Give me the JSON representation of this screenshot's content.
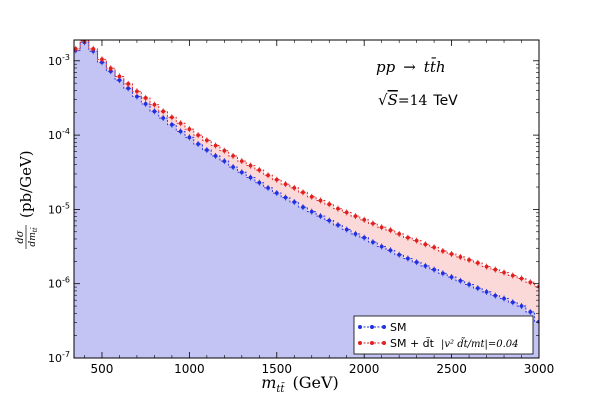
{
  "chart_data": {
    "type": "line",
    "xlabel": {
      "var": "m",
      "sub": "tt̄",
      "unit": "(GeV)"
    },
    "ylabel": {
      "num": "dσ",
      "den": "dm",
      "den_sub": "tt̄",
      "unit": "(pb/GeV)"
    },
    "xlim": [
      340,
      3000
    ],
    "ylim_log10": [
      -7,
      -2.72
    ],
    "yscale": "log",
    "x_ticks": [
      "500",
      "1000",
      "1500",
      "2000",
      "2500",
      "3000"
    ],
    "y_tick_exponents": [
      "-7",
      "-6",
      "-5",
      "-4",
      "-3"
    ],
    "y_tick_base": "10",
    "annotations": {
      "process": {
        "lhs": "pp",
        "arrow": "→",
        "rhs": "tt̄h"
      },
      "energy": {
        "sqrt": "√",
        "var": "S",
        "eq": "=14",
        "unit": "TeV"
      }
    },
    "legend_position": "lower-right",
    "colors": {
      "sm": "#2030e0",
      "dt": "#e02020",
      "sm_fill": "#c4c4f4",
      "band_fill": "#fbd9d9"
    },
    "x": [
      350,
      400,
      450,
      500,
      550,
      600,
      650,
      700,
      750,
      800,
      850,
      900,
      950,
      1000,
      1050,
      1100,
      1150,
      1200,
      1250,
      1300,
      1350,
      1400,
      1450,
      1500,
      1550,
      1600,
      1650,
      1700,
      1750,
      1800,
      1850,
      1900,
      1950,
      2000,
      2050,
      2100,
      2150,
      2200,
      2250,
      2300,
      2350,
      2400,
      2450,
      2500,
      2550,
      2600,
      2650,
      2700,
      2750,
      2800,
      2850,
      2900,
      2950,
      3000
    ],
    "series": [
      {
        "name": "SM",
        "color": "#2030e0",
        "log10_values": [
          -2.86,
          -2.75,
          -2.87,
          -3.02,
          -3.14,
          -3.26,
          -3.37,
          -3.48,
          -3.58,
          -3.68,
          -3.77,
          -3.86,
          -3.95,
          -4.03,
          -4.12,
          -4.2,
          -4.28,
          -4.35,
          -4.43,
          -4.5,
          -4.57,
          -4.64,
          -4.71,
          -4.78,
          -4.84,
          -4.9,
          -4.97,
          -5.03,
          -5.09,
          -5.15,
          -5.21,
          -5.27,
          -5.33,
          -5.38,
          -5.44,
          -5.5,
          -5.55,
          -5.61,
          -5.66,
          -5.71,
          -5.76,
          -5.81,
          -5.86,
          -5.91,
          -5.96,
          -6.01,
          -6.06,
          -6.11,
          -6.16,
          -6.2,
          -6.25,
          -6.3,
          -6.38,
          -6.51
        ]
      },
      {
        "name": "SM + d̃t",
        "label_extra": "|v² d̃t/mt|=0.04",
        "color": "#e02020",
        "log10_values": [
          -2.84,
          -2.73,
          -2.84,
          -2.98,
          -3.1,
          -3.21,
          -3.31,
          -3.41,
          -3.5,
          -3.59,
          -3.68,
          -3.76,
          -3.84,
          -3.92,
          -4.0,
          -4.07,
          -4.14,
          -4.21,
          -4.28,
          -4.35,
          -4.41,
          -4.47,
          -4.54,
          -4.6,
          -4.66,
          -4.71,
          -4.77,
          -4.83,
          -4.88,
          -4.93,
          -4.99,
          -5.04,
          -5.09,
          -5.14,
          -5.19,
          -5.24,
          -5.28,
          -5.33,
          -5.38,
          -5.42,
          -5.47,
          -5.51,
          -5.56,
          -5.6,
          -5.64,
          -5.68,
          -5.72,
          -5.77,
          -5.81,
          -5.85,
          -5.89,
          -5.93,
          -5.98,
          -6.04
        ]
      }
    ]
  }
}
